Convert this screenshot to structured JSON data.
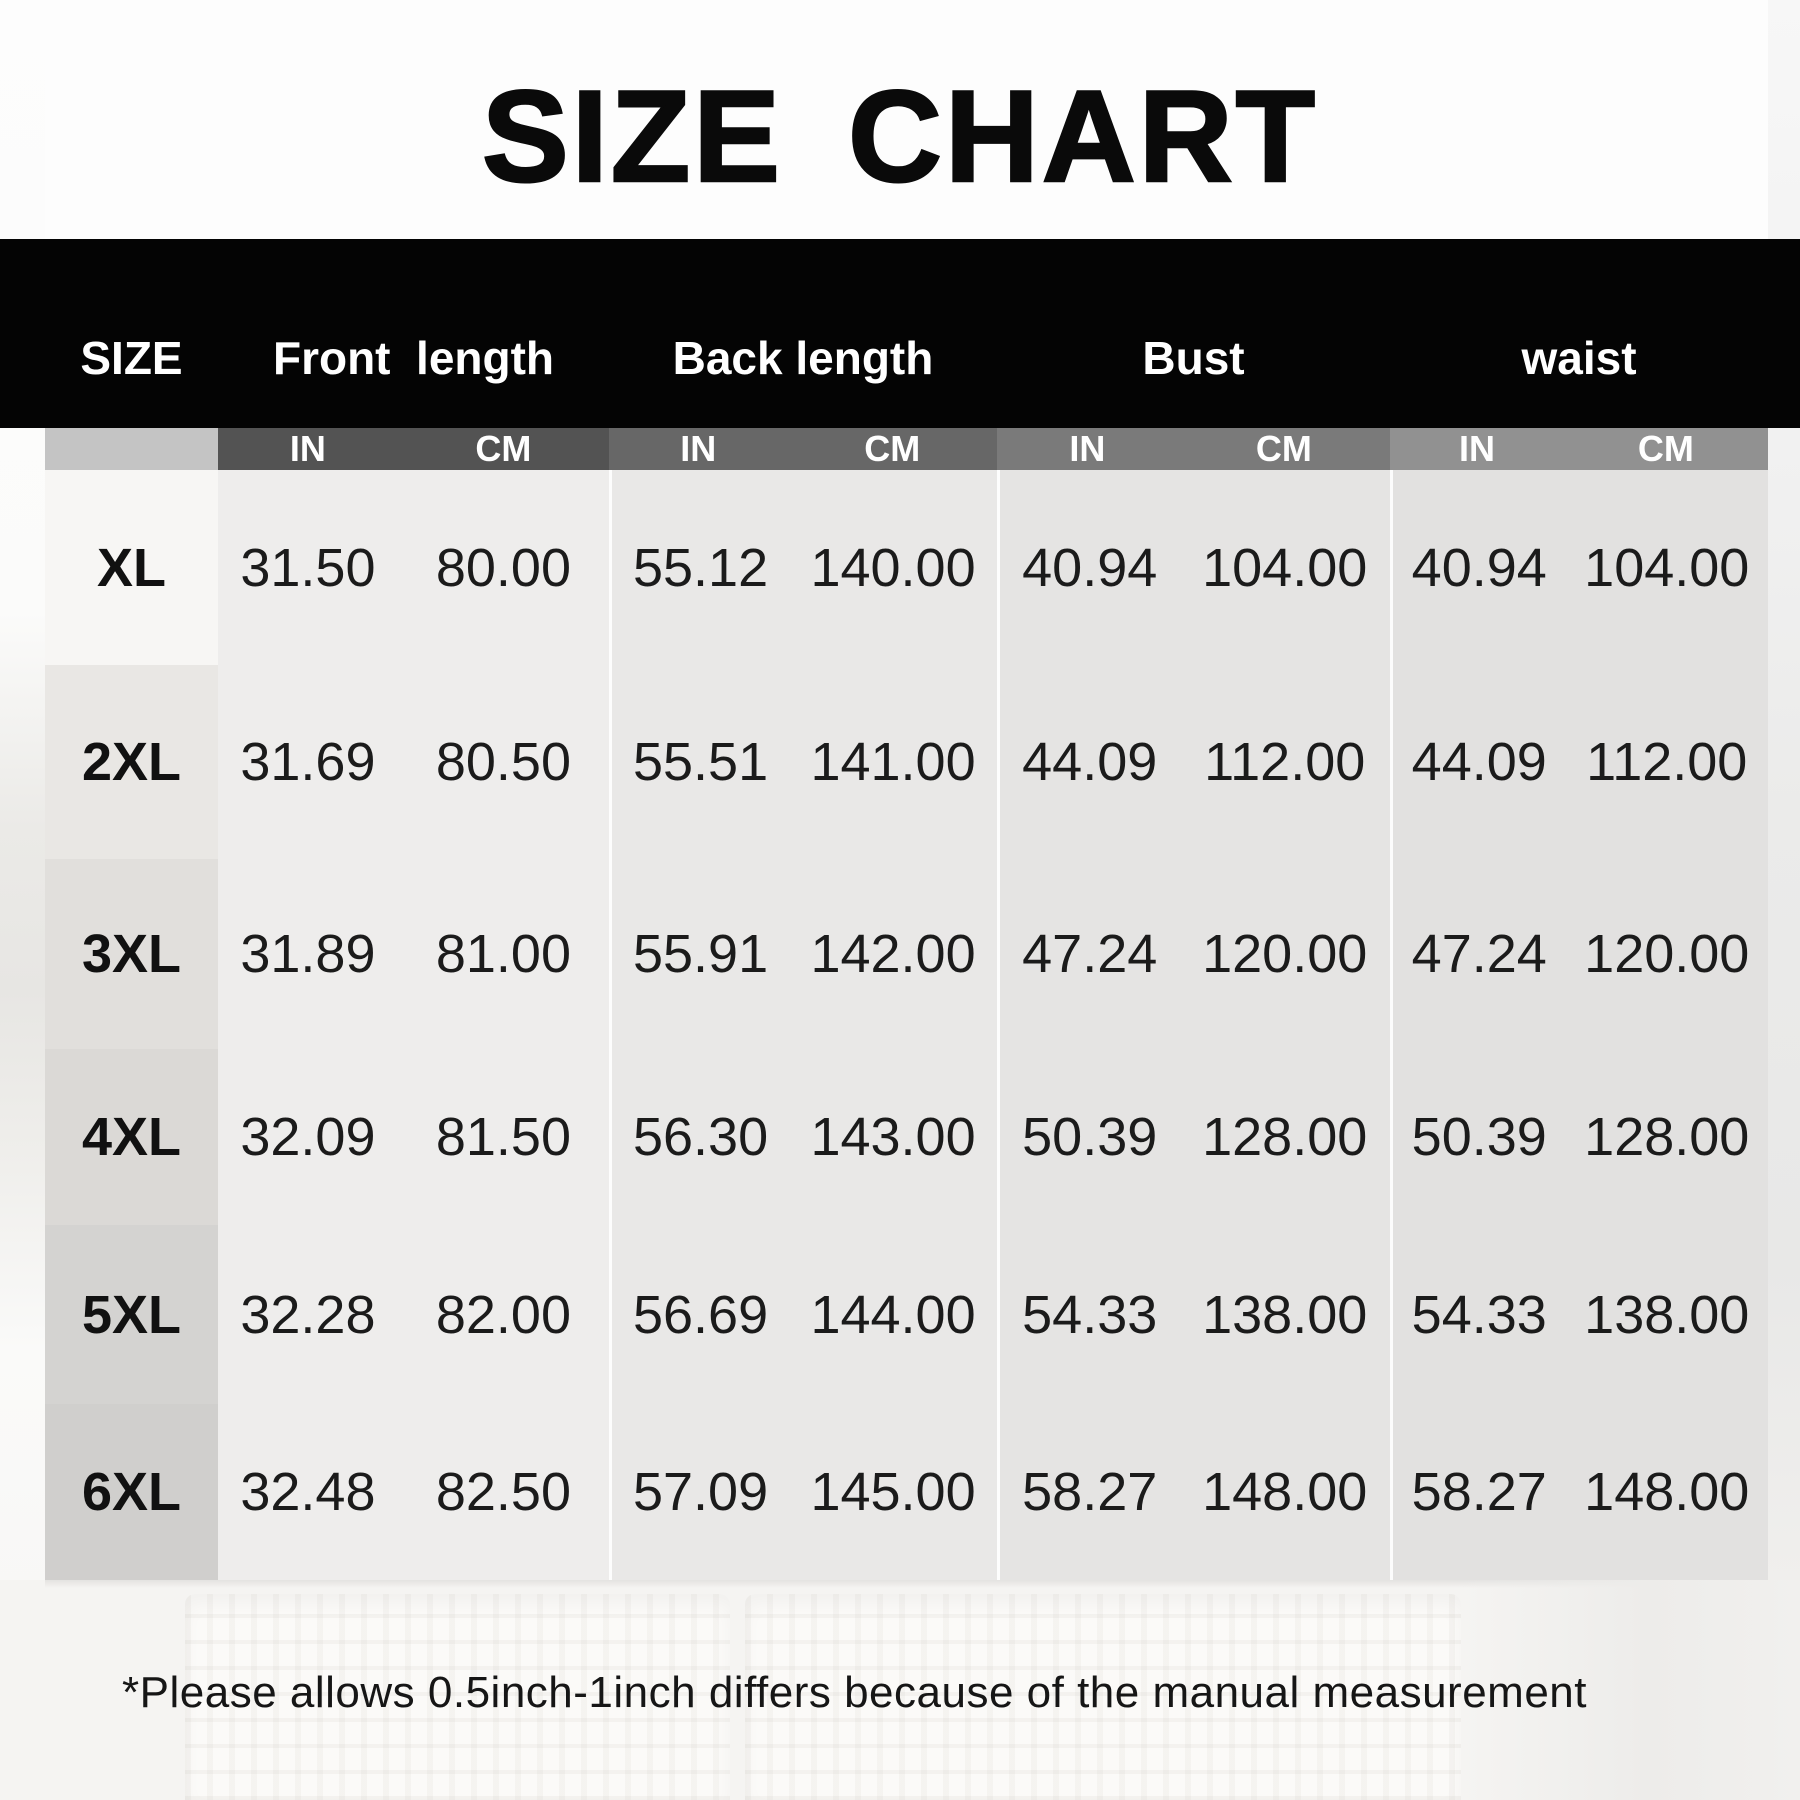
{
  "title": "SIZE CHART",
  "note": "*Please allows 0.5inch-1inch differs because of the manual measurement",
  "table": {
    "size_header": "SIZE",
    "units": [
      "IN",
      "CM"
    ],
    "groups": [
      {
        "label": "Front  length"
      },
      {
        "label": "Back length"
      },
      {
        "label": "Bust"
      },
      {
        "label": "waist"
      }
    ],
    "rows": [
      {
        "size": "XL",
        "values": [
          [
            "31.50",
            "80.00"
          ],
          [
            "55.12",
            "140.00"
          ],
          [
            "40.94",
            "104.00"
          ],
          [
            "40.94",
            "104.00"
          ]
        ]
      },
      {
        "size": "2XL",
        "values": [
          [
            "31.69",
            "80.50"
          ],
          [
            "55.51",
            "141.00"
          ],
          [
            "44.09",
            "112.00"
          ],
          [
            "44.09",
            "112.00"
          ]
        ]
      },
      {
        "size": "3XL",
        "values": [
          [
            "31.89",
            "81.00"
          ],
          [
            "55.91",
            "142.00"
          ],
          [
            "47.24",
            "120.00"
          ],
          [
            "47.24",
            "120.00"
          ]
        ]
      },
      {
        "size": "4XL",
        "values": [
          [
            "32.09",
            "81.50"
          ],
          [
            "56.30",
            "143.00"
          ],
          [
            "50.39",
            "128.00"
          ],
          [
            "50.39",
            "128.00"
          ]
        ]
      },
      {
        "size": "5XL",
        "values": [
          [
            "32.28",
            "82.00"
          ],
          [
            "56.69",
            "144.00"
          ],
          [
            "54.33",
            "138.00"
          ],
          [
            "54.33",
            "138.00"
          ]
        ]
      },
      {
        "size": "6XL",
        "values": [
          [
            "32.48",
            "82.50"
          ],
          [
            "57.09",
            "145.00"
          ],
          [
            "58.27",
            "148.00"
          ],
          [
            "58.27",
            "148.00"
          ]
        ]
      }
    ]
  },
  "colors": {
    "header_band": "#040404",
    "header_text": "#ffffff",
    "size_unit_band": "#c4c4c4",
    "unit_bands": [
      "#535353",
      "#676767",
      "#7a7a7a",
      "#919191"
    ],
    "group_body": [
      "#eeedec",
      "#e9e8e7",
      "#e5e4e3",
      "#e2e1e0"
    ],
    "size_column_stripes": [
      "#f7f6f4",
      "#e9e7e4",
      "#e1dfdc",
      "#dbd9d6",
      "#d4d3d1",
      "#d0cfcd"
    ],
    "number_text": "#1b1b1b",
    "title_text": "#0a0a0a"
  }
}
